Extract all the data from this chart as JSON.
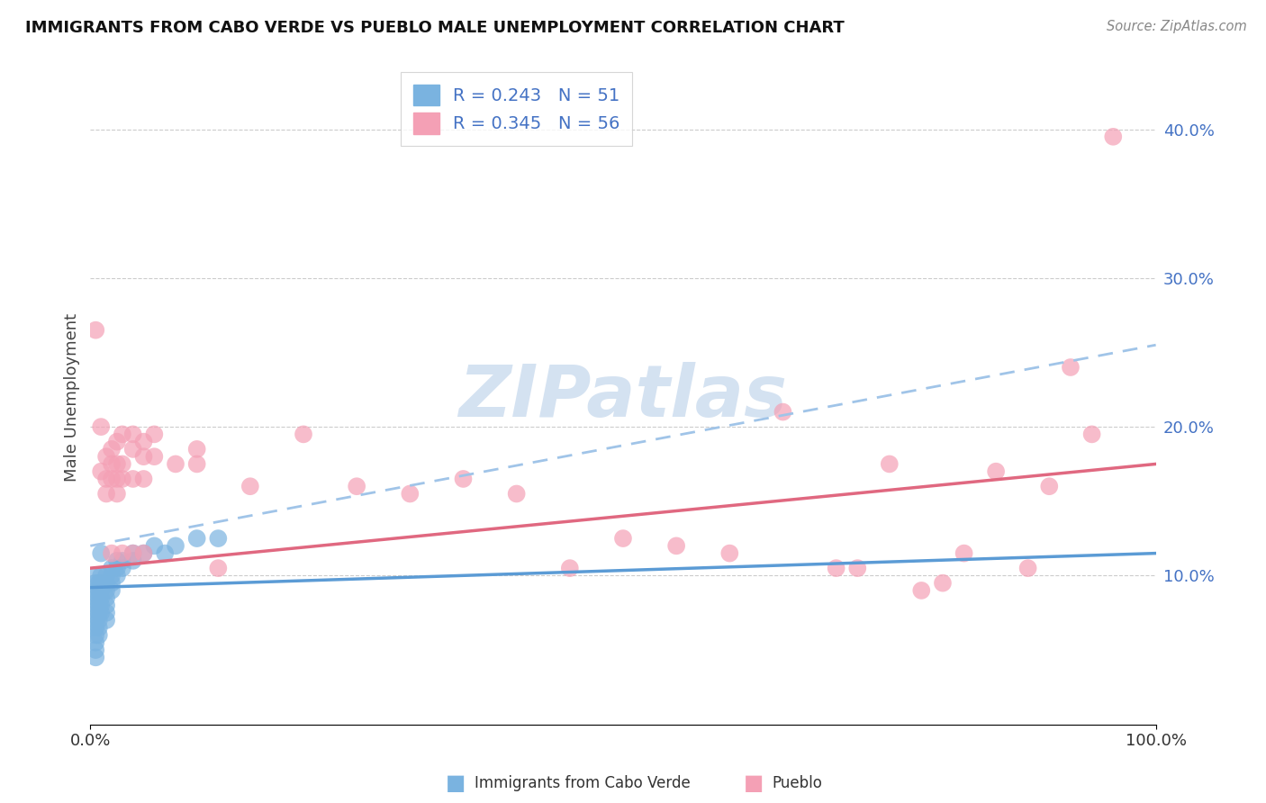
{
  "title": "IMMIGRANTS FROM CABO VERDE VS PUEBLO MALE UNEMPLOYMENT CORRELATION CHART",
  "source": "Source: ZipAtlas.com",
  "ylabel": "Male Unemployment",
  "xlim": [
    0.0,
    1.0
  ],
  "ylim": [
    0.0,
    0.44
  ],
  "y_tick_vals": [
    0.1,
    0.2,
    0.3,
    0.4
  ],
  "y_tick_labels": [
    "10.0%",
    "20.0%",
    "30.0%",
    "40.0%"
  ],
  "x_tick_vals": [
    0.0,
    1.0
  ],
  "x_tick_labels": [
    "0.0%",
    "100.0%"
  ],
  "color_blue": "#7ab3e0",
  "color_pink": "#f4a0b5",
  "line_blue_solid": "#5b9bd5",
  "line_blue_dash": "#a0c4e8",
  "line_pink_solid": "#e06880",
  "watermark_color": "#d0dff0",
  "blue_scatter": [
    [
      0.005,
      0.09
    ],
    [
      0.005,
      0.095
    ],
    [
      0.005,
      0.1
    ],
    [
      0.005,
      0.085
    ],
    [
      0.005,
      0.08
    ],
    [
      0.005,
      0.075
    ],
    [
      0.005,
      0.07
    ],
    [
      0.005,
      0.065
    ],
    [
      0.005,
      0.06
    ],
    [
      0.005,
      0.055
    ],
    [
      0.005,
      0.05
    ],
    [
      0.005,
      0.045
    ],
    [
      0.008,
      0.095
    ],
    [
      0.008,
      0.09
    ],
    [
      0.008,
      0.085
    ],
    [
      0.008,
      0.08
    ],
    [
      0.008,
      0.075
    ],
    [
      0.008,
      0.07
    ],
    [
      0.008,
      0.065
    ],
    [
      0.008,
      0.06
    ],
    [
      0.01,
      0.1
    ],
    [
      0.01,
      0.095
    ],
    [
      0.01,
      0.09
    ],
    [
      0.01,
      0.085
    ],
    [
      0.01,
      0.08
    ],
    [
      0.01,
      0.075
    ],
    [
      0.01,
      0.115
    ],
    [
      0.015,
      0.1
    ],
    [
      0.015,
      0.095
    ],
    [
      0.015,
      0.09
    ],
    [
      0.015,
      0.085
    ],
    [
      0.015,
      0.08
    ],
    [
      0.015,
      0.075
    ],
    [
      0.015,
      0.07
    ],
    [
      0.02,
      0.105
    ],
    [
      0.02,
      0.1
    ],
    [
      0.02,
      0.095
    ],
    [
      0.02,
      0.09
    ],
    [
      0.025,
      0.11
    ],
    [
      0.025,
      0.105
    ],
    [
      0.025,
      0.1
    ],
    [
      0.03,
      0.11
    ],
    [
      0.03,
      0.105
    ],
    [
      0.04,
      0.115
    ],
    [
      0.04,
      0.11
    ],
    [
      0.05,
      0.115
    ],
    [
      0.06,
      0.12
    ],
    [
      0.07,
      0.115
    ],
    [
      0.08,
      0.12
    ],
    [
      0.1,
      0.125
    ],
    [
      0.12,
      0.125
    ]
  ],
  "pink_scatter": [
    [
      0.005,
      0.265
    ],
    [
      0.01,
      0.2
    ],
    [
      0.01,
      0.17
    ],
    [
      0.015,
      0.18
    ],
    [
      0.015,
      0.165
    ],
    [
      0.015,
      0.155
    ],
    [
      0.02,
      0.185
    ],
    [
      0.02,
      0.175
    ],
    [
      0.02,
      0.165
    ],
    [
      0.02,
      0.115
    ],
    [
      0.025,
      0.19
    ],
    [
      0.025,
      0.175
    ],
    [
      0.025,
      0.165
    ],
    [
      0.025,
      0.155
    ],
    [
      0.03,
      0.195
    ],
    [
      0.03,
      0.175
    ],
    [
      0.03,
      0.165
    ],
    [
      0.03,
      0.115
    ],
    [
      0.04,
      0.195
    ],
    [
      0.04,
      0.185
    ],
    [
      0.04,
      0.165
    ],
    [
      0.04,
      0.115
    ],
    [
      0.05,
      0.19
    ],
    [
      0.05,
      0.18
    ],
    [
      0.05,
      0.165
    ],
    [
      0.05,
      0.115
    ],
    [
      0.06,
      0.195
    ],
    [
      0.06,
      0.18
    ],
    [
      0.08,
      0.175
    ],
    [
      0.1,
      0.185
    ],
    [
      0.1,
      0.175
    ],
    [
      0.12,
      0.105
    ],
    [
      0.15,
      0.16
    ],
    [
      0.2,
      0.195
    ],
    [
      0.25,
      0.16
    ],
    [
      0.3,
      0.155
    ],
    [
      0.35,
      0.165
    ],
    [
      0.4,
      0.155
    ],
    [
      0.45,
      0.105
    ],
    [
      0.5,
      0.125
    ],
    [
      0.55,
      0.12
    ],
    [
      0.6,
      0.115
    ],
    [
      0.65,
      0.21
    ],
    [
      0.7,
      0.105
    ],
    [
      0.72,
      0.105
    ],
    [
      0.75,
      0.175
    ],
    [
      0.78,
      0.09
    ],
    [
      0.8,
      0.095
    ],
    [
      0.82,
      0.115
    ],
    [
      0.85,
      0.17
    ],
    [
      0.88,
      0.105
    ],
    [
      0.9,
      0.16
    ],
    [
      0.92,
      0.24
    ],
    [
      0.94,
      0.195
    ],
    [
      0.96,
      0.395
    ]
  ],
  "solid_blue_line": [
    [
      0.0,
      0.092
    ],
    [
      1.0,
      0.115
    ]
  ],
  "dashed_blue_line": [
    [
      0.0,
      0.12
    ],
    [
      1.0,
      0.255
    ]
  ],
  "solid_pink_line": [
    [
      0.0,
      0.105
    ],
    [
      1.0,
      0.175
    ]
  ]
}
